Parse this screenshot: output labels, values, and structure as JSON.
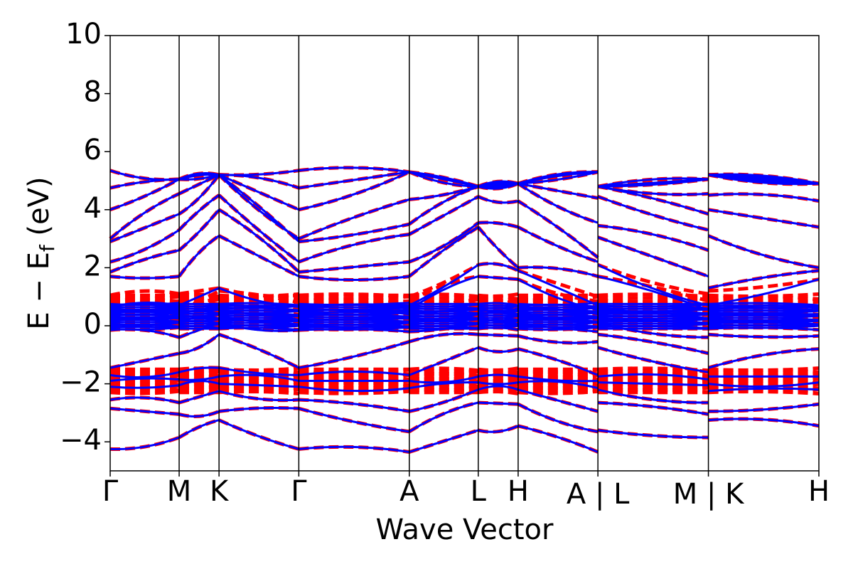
{
  "chart_data": {
    "type": "line",
    "title": "",
    "xlabel": "Wave Vector",
    "ylabel": "E − E",
    "ylabel_subscript": "f",
    "ylabel_unit": " (eV)",
    "ylim": [
      -5,
      10
    ],
    "yticks": [
      {
        "value": -4,
        "label": "−4"
      },
      {
        "value": -2,
        "label": "−2"
      },
      {
        "value": 0,
        "label": "0"
      },
      {
        "value": 2,
        "label": "2"
      },
      {
        "value": 4,
        "label": "4"
      },
      {
        "value": 6,
        "label": "6"
      },
      {
        "value": 8,
        "label": "8"
      },
      {
        "value": 10,
        "label": "10"
      }
    ],
    "kpath_segments": [
      {
        "from": "Γ",
        "to": "M",
        "length": 0.977
      },
      {
        "from": "M",
        "to": "K",
        "length": 0.565
      },
      {
        "from": "K",
        "to": "Γ",
        "length": 1.13
      },
      {
        "from": "Γ",
        "to": "A",
        "length": 1.565
      },
      {
        "from": "A",
        "to": "L",
        "length": 0.977
      },
      {
        "from": "L",
        "to": "H",
        "length": 0.565
      },
      {
        "from": "H",
        "to": "A",
        "length": 1.13
      },
      {
        "from": "L",
        "to": "M",
        "length": 1.565
      },
      {
        "from": "K",
        "to": "H",
        "length": 1.565
      }
    ],
    "xticks": [
      "Γ",
      "M",
      "K",
      "Γ",
      "A",
      "L",
      "H",
      "A | L",
      "M | K",
      "H"
    ],
    "grid": false,
    "series": [
      {
        "style": "dashed",
        "color": "#ff0000",
        "bands_at_high_symmetry_points": {
          "Γ": [
            -4.25,
            -2.85,
            -2.55,
            -2.1,
            -1.9,
            -1.7,
            -1.45,
            -0.15,
            0.05,
            0.3,
            0.55,
            0.8,
            1.05,
            1.7,
            1.85,
            2.2,
            2.9,
            3.0,
            4.0,
            4.75,
            5.35
          ],
          "M": [
            -3.85,
            -3.05,
            -2.65,
            -2.05,
            -1.85,
            -1.6,
            -0.95,
            -0.4,
            0.1,
            0.35,
            0.6,
            0.85,
            1.1,
            1.7,
            2.6,
            3.3,
            3.85,
            4.55,
            5.05
          ],
          "K": [
            -3.25,
            -2.95,
            -2.25,
            -2.0,
            -1.75,
            -1.45,
            -0.3,
            0.15,
            0.4,
            0.65,
            0.9,
            1.2,
            1.3,
            3.1,
            4.0,
            4.5,
            5.2
          ],
          "A": [
            -4.35,
            -3.65,
            -2.95,
            -2.15,
            -1.9,
            -1.7,
            -0.55,
            -0.2,
            0.1,
            0.35,
            0.6,
            0.85,
            1.0,
            1.7,
            2.2,
            3.15,
            3.5,
            4.35,
            5.3
          ],
          "L": [
            -3.6,
            -2.65,
            -2.2,
            -1.95,
            -1.75,
            -0.75,
            -0.3,
            0.1,
            0.35,
            0.6,
            0.9,
            1.7,
            2.1,
            3.4,
            3.55,
            4.45,
            4.8
          ],
          "H": [
            -3.45,
            -2.7,
            -2.2,
            -1.95,
            -1.75,
            -0.8,
            -0.35,
            0.05,
            0.3,
            0.6,
            0.9,
            1.6,
            1.9,
            2.0,
            3.4,
            4.3,
            4.9
          ],
          "A2": [
            -4.35,
            -3.65,
            -2.95,
            -2.15,
            -1.9,
            -1.7,
            -0.55,
            -0.2,
            0.1,
            0.35,
            0.6,
            0.85,
            1.0,
            1.7,
            2.2,
            2.35,
            3.55,
            4.4,
            5.3
          ],
          "L2": [
            -3.6,
            -2.65,
            -2.2,
            -1.95,
            -1.75,
            -0.75,
            -0.3,
            0.1,
            0.35,
            0.6,
            0.9,
            1.7,
            2.1,
            3.05,
            3.45,
            4.45,
            4.8
          ],
          "M2": [
            -3.85,
            -3.05,
            -2.65,
            -2.05,
            -1.85,
            -1.6,
            -0.95,
            -0.4,
            0.1,
            0.35,
            0.6,
            0.85,
            1.1,
            1.7,
            2.6,
            3.3,
            3.85,
            4.55,
            5.05
          ],
          "K2": [
            -3.25,
            -2.95,
            -2.25,
            -2.0,
            -1.75,
            -1.45,
            -0.3,
            0.15,
            0.4,
            0.65,
            0.9,
            1.2,
            1.3,
            3.1,
            4.0,
            4.5,
            5.2
          ],
          "H2": [
            -3.45,
            -2.7,
            -2.2,
            -1.95,
            -1.75,
            -0.8,
            -0.35,
            0.05,
            0.3,
            0.6,
            0.9,
            1.6,
            1.9,
            2.0,
            3.4,
            4.3,
            4.9
          ]
        }
      },
      {
        "style": "solid",
        "color": "#0000ff",
        "bands_at_high_symmetry_points": {
          "Γ": [
            -4.25,
            -2.85,
            -2.55,
            -2.1,
            -1.9,
            -1.7,
            -1.45,
            -0.15,
            0.05,
            0.2,
            0.35,
            0.5,
            0.65,
            1.7,
            1.85,
            2.2,
            2.9,
            3.0,
            4.0,
            4.75,
            5.35
          ],
          "M": [
            -3.85,
            -3.05,
            -2.65,
            -2.05,
            -1.85,
            -1.6,
            -0.95,
            -0.4,
            0.1,
            0.25,
            0.4,
            0.55,
            0.7,
            1.7,
            2.6,
            3.3,
            3.85,
            4.55,
            5.05
          ],
          "K": [
            -3.25,
            -2.95,
            -2.25,
            -2.0,
            -1.75,
            -1.45,
            -0.3,
            0.1,
            0.25,
            0.4,
            0.55,
            0.7,
            1.3,
            3.1,
            4.0,
            4.5,
            5.2
          ],
          "A": [
            -4.35,
            -3.65,
            -2.95,
            -2.15,
            -1.9,
            -1.7,
            -0.55,
            -0.2,
            0.1,
            0.25,
            0.4,
            0.55,
            0.7,
            1.7,
            2.2,
            3.15,
            3.5,
            4.35,
            5.3
          ],
          "L": [
            -3.6,
            -2.65,
            -2.2,
            -1.95,
            -1.75,
            -0.75,
            -0.3,
            0.1,
            0.25,
            0.4,
            0.6,
            1.7,
            2.1,
            3.4,
            3.55,
            4.45,
            4.8
          ],
          "H": [
            -3.45,
            -2.7,
            -2.2,
            -1.95,
            -1.75,
            -0.8,
            -0.35,
            0.05,
            0.2,
            0.4,
            0.6,
            1.6,
            1.9,
            2.0,
            3.4,
            4.3,
            4.9
          ],
          "A2": [
            -4.35,
            -3.65,
            -2.95,
            -2.15,
            -1.9,
            -1.7,
            -0.55,
            -0.2,
            0.1,
            0.25,
            0.4,
            0.55,
            0.7,
            1.7,
            2.2,
            2.35,
            3.55,
            4.4,
            5.3
          ],
          "L2": [
            -3.6,
            -2.65,
            -2.2,
            -1.95,
            -1.75,
            -0.75,
            -0.3,
            0.1,
            0.25,
            0.4,
            0.6,
            1.7,
            2.1,
            3.05,
            3.45,
            4.45,
            4.8
          ],
          "M2": [
            -3.85,
            -3.05,
            -2.65,
            -2.05,
            -1.85,
            -1.6,
            -0.95,
            -0.4,
            0.1,
            0.25,
            0.4,
            0.55,
            0.7,
            1.7,
            2.6,
            3.3,
            3.85,
            4.55,
            5.05
          ],
          "K2": [
            -3.25,
            -2.95,
            -2.25,
            -2.0,
            -1.75,
            -1.45,
            -0.3,
            0.1,
            0.25,
            0.4,
            0.55,
            0.7,
            1.3,
            3.1,
            4.0,
            4.5,
            5.2
          ],
          "H2": [
            -3.45,
            -2.7,
            -2.2,
            -1.95,
            -1.75,
            -0.8,
            -0.35,
            0.05,
            0.2,
            0.4,
            0.6,
            1.6,
            1.9,
            2.0,
            3.4,
            4.3,
            4.9
          ]
        }
      }
    ]
  }
}
